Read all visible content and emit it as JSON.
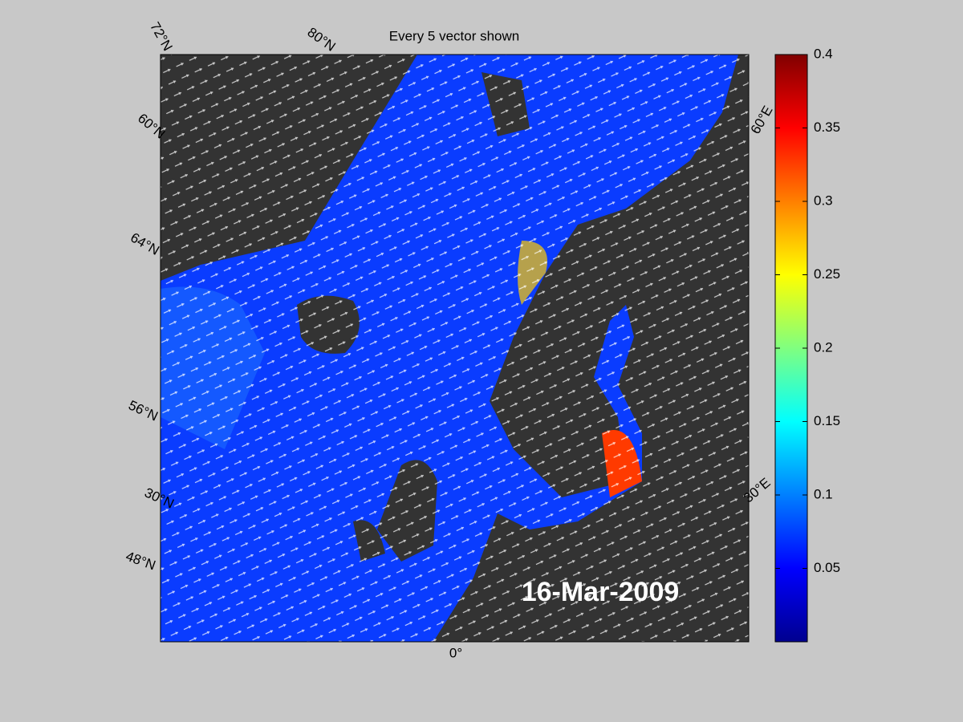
{
  "title": "Every 5 vector shown",
  "date": "16-Mar-2009",
  "graticule_labels": [
    "72°N",
    "80°N",
    "60°N",
    "64°N",
    "56°N",
    "30°N",
    "48°N",
    "0°",
    "60°E",
    "30°E"
  ],
  "colorbar": {
    "lim": [
      0,
      0.4
    ],
    "ticks": [
      0.05,
      0.1,
      0.15,
      0.2,
      0.25,
      0.3,
      0.35,
      0.4
    ]
  }
}
